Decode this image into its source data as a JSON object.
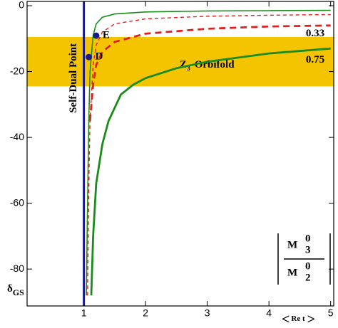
{
  "chart_data": {
    "type": "line",
    "xlim": [
      0.08,
      5.05
    ],
    "ylim": [
      -91.2,
      1.3
    ],
    "xticks": [
      1,
      2,
      3,
      4,
      5
    ],
    "yticks": [
      0,
      -20,
      -40,
      -60,
      -80
    ],
    "x_label": {
      "open": "<",
      "text": "Re t",
      "close": ">"
    },
    "y_label": {
      "main": "δ",
      "sub": "GS"
    },
    "band": {
      "from": -9.5,
      "to": -24.5,
      "color": "#f5c400",
      "label": {
        "main": "Z",
        "sub": "3",
        "rest": "Orbifold"
      }
    },
    "reference_line": {
      "x": 1,
      "label": "Self-Dual Point",
      "color": "#1a1a8c"
    },
    "points": [
      {
        "label": "E",
        "x": 1.2,
        "y": -9.1,
        "color": "#1a1a8c"
      },
      {
        "label": "D",
        "x": 1.08,
        "y": -15.6,
        "color": "#1a1a8c"
      }
    ],
    "curve_labels": [
      {
        "text": "0.33",
        "x": 4.75,
        "y": -8.5
      },
      {
        "text": "0.75",
        "x": 4.75,
        "y": -16.5
      }
    ],
    "ratio_label": {
      "numerator": {
        "base": "M",
        "sup": "0",
        "sub": "3"
      },
      "denominator": {
        "base": "M",
        "sup": "0",
        "sub": "2"
      }
    },
    "series": [
      {
        "color": "#1a8c1a",
        "width": 1.6,
        "dash": "none",
        "x": [
          1.04,
          1.06,
          1.08,
          1.1,
          1.15,
          1.2,
          1.3,
          1.5,
          2,
          3,
          4,
          5
        ],
        "values": [
          -88,
          -60,
          -35,
          -20,
          -9,
          -5.5,
          -3.5,
          -2.5,
          -1.9,
          -1.6,
          -1.5,
          -1.4
        ]
      },
      {
        "color": "#e02020",
        "width": 1.4,
        "dash": "5,4",
        "x": [
          1.06,
          1.08,
          1.1,
          1.15,
          1.2,
          1.3,
          1.5,
          2,
          3,
          4,
          5
        ],
        "values": [
          -88,
          -55,
          -35,
          -18,
          -12,
          -8,
          -5.5,
          -4,
          -3.2,
          -2.9,
          -2.7
        ]
      },
      {
        "color": "#e02020",
        "width": 2.8,
        "dash": "9,6",
        "x": [
          1.1,
          1.15,
          1.2,
          1.3,
          1.5,
          2,
          3,
          4,
          5
        ],
        "values": [
          -35,
          -24,
          -18,
          -14,
          -11,
          -8.5,
          -7,
          -6.3,
          -6
        ]
      },
      {
        "color": "#1a8c1a",
        "width": 2.8,
        "dash": "none",
        "x": [
          1.12,
          1.15,
          1.2,
          1.3,
          1.4,
          1.6,
          1.8,
          2,
          2.5,
          3,
          4,
          5
        ],
        "values": [
          -88,
          -70,
          -54,
          -42,
          -35,
          -27,
          -24,
          -22,
          -19,
          -17,
          -14.5,
          -13
        ]
      }
    ]
  }
}
